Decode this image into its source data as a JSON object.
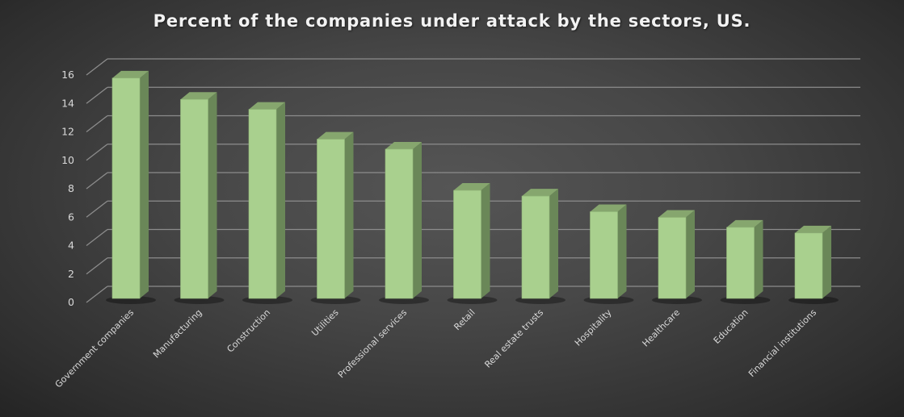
{
  "chart_data": {
    "type": "bar",
    "style": "3d-column",
    "title": "Percent of the companies under attack by the sectors, US.",
    "xlabel": "",
    "ylabel": "",
    "ylim": [
      0,
      16
    ],
    "yticks": [
      0,
      2,
      4,
      6,
      8,
      10,
      12,
      14,
      16
    ],
    "grid": true,
    "legend": null,
    "categories": [
      "Government companies",
      "Manufacturing",
      "Construction",
      "Utilities",
      "Professional services",
      "Retail",
      "Real estate trusts",
      "Hospitality",
      "Healthcare",
      "Education",
      "Financial institutions"
    ],
    "values": [
      15.5,
      14.0,
      13.3,
      11.2,
      10.5,
      7.6,
      7.2,
      6.1,
      5.7,
      5.0,
      4.6
    ],
    "colors": {
      "bar_front": "#a9d08e",
      "bar_side": "#6a8758",
      "bar_top": "#86a66e",
      "gridline": "#8c8c8c",
      "text": "#d9d9d9",
      "title": "#f2f2f2"
    }
  }
}
